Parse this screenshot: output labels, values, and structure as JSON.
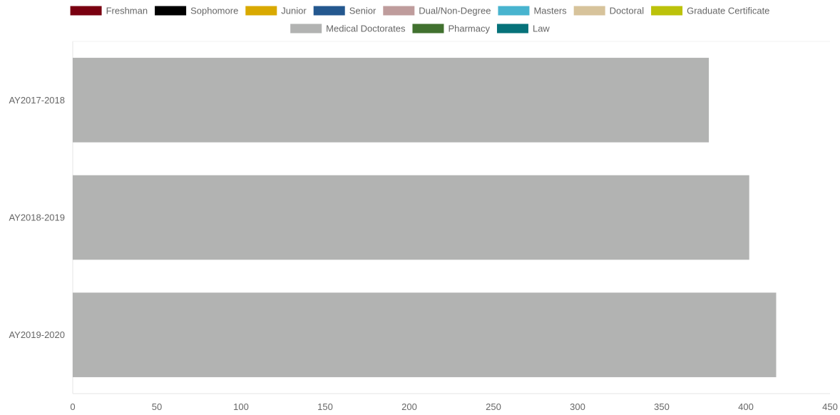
{
  "chart_data": {
    "type": "bar",
    "orientation": "horizontal",
    "title": "",
    "xlabel": "",
    "ylabel": "",
    "categories": [
      "AY2017-2018",
      "AY2018-2019",
      "AY2019-2020"
    ],
    "series": [
      {
        "name": "Freshman",
        "color": "#7a0010",
        "values": [
          0,
          0,
          0
        ]
      },
      {
        "name": "Sophomore",
        "color": "#000000",
        "values": [
          0,
          0,
          0
        ]
      },
      {
        "name": "Junior",
        "color": "#d9a900",
        "values": [
          0,
          0,
          0
        ]
      },
      {
        "name": "Senior",
        "color": "#24588f",
        "values": [
          0,
          0,
          0
        ]
      },
      {
        "name": "Dual/Non-Degree",
        "color": "#bf9c9c",
        "values": [
          0,
          0,
          0
        ]
      },
      {
        "name": "Masters",
        "color": "#48b4cf",
        "values": [
          0,
          0,
          0
        ]
      },
      {
        "name": "Doctoral",
        "color": "#d7c39b",
        "values": [
          0,
          0,
          0
        ]
      },
      {
        "name": "Graduate Certificate",
        "color": "#bcc20a",
        "values": [
          0,
          0,
          0
        ]
      },
      {
        "name": "Medical Doctorates",
        "color": "#b2b3b2",
        "values": [
          378,
          402,
          418
        ]
      },
      {
        "name": "Pharmacy",
        "color": "#41712f",
        "values": [
          0,
          0,
          0
        ]
      },
      {
        "name": "Law",
        "color": "#06727a",
        "values": [
          0,
          0,
          0
        ]
      }
    ],
    "xlim": [
      0,
      450
    ],
    "xticks": [
      0,
      50,
      100,
      150,
      200,
      250,
      300,
      350,
      400,
      450
    ],
    "stacked": true,
    "grid": false,
    "legend_position": "top"
  }
}
